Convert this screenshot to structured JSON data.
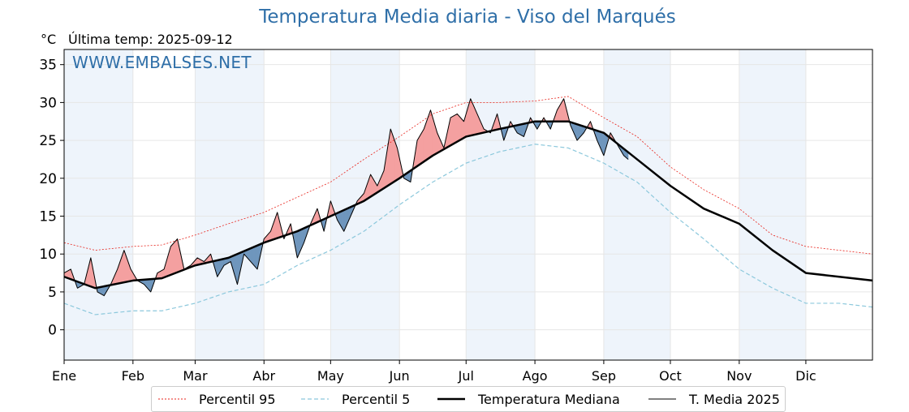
{
  "chart_data": {
    "type": "line",
    "title": "Temperatura Media diaria - Viso del Marqués",
    "unit_label": "°C",
    "last_temp_label": "Última temp: 2025-09-12",
    "watermark": "WWW.EMBALSES.NET",
    "ylim": [
      -4,
      37
    ],
    "yticks": [
      0,
      5,
      10,
      15,
      20,
      25,
      30,
      35
    ],
    "x_range_days": [
      1,
      365
    ],
    "month_labels": [
      "Ene",
      "Feb",
      "Mar",
      "Abr",
      "May",
      "Jun",
      "Jul",
      "Ago",
      "Sep",
      "Oct",
      "Nov",
      "Dic"
    ],
    "month_start_days": [
      1,
      32,
      60,
      91,
      121,
      152,
      182,
      213,
      244,
      274,
      305,
      335
    ],
    "grid": true,
    "legend_position": "bottom",
    "colors": {
      "p95": "#e8231b",
      "p5": "#8cc8dc",
      "median": "#000000",
      "current": "#000000",
      "above_fill": "#f4a0a0",
      "below_fill": "#6f96bd",
      "title": "#2f6fa8",
      "band": "#eef4fb"
    },
    "legend": [
      {
        "key": "p95",
        "label": "Percentil 95"
      },
      {
        "key": "p5",
        "label": "Percentil 5"
      },
      {
        "key": "median",
        "label": "Temperatura Mediana"
      },
      {
        "key": "current",
        "label": "T. Media 2025"
      }
    ],
    "series": [
      {
        "name": "Percentil 95",
        "key": "p95",
        "x": [
          1,
          15,
          32,
          45,
          60,
          75,
          91,
          106,
          121,
          136,
          152,
          167,
          182,
          197,
          213,
          228,
          244,
          259,
          274,
          289,
          305,
          320,
          335,
          350,
          365
        ],
        "values": [
          11.5,
          10.5,
          11,
          11.2,
          12.5,
          14,
          15.5,
          17.5,
          19.5,
          22.5,
          25.5,
          28.5,
          30,
          30,
          30.2,
          30.8,
          28,
          25.5,
          21.5,
          18.5,
          16,
          12.5,
          11,
          10.5,
          10
        ]
      },
      {
        "name": "Percentil 5",
        "key": "p5",
        "x": [
          1,
          15,
          32,
          45,
          60,
          75,
          91,
          106,
          121,
          136,
          152,
          167,
          182,
          197,
          213,
          228,
          244,
          259,
          274,
          289,
          305,
          320,
          335,
          350,
          365
        ],
        "values": [
          3.5,
          2,
          2.5,
          2.5,
          3.5,
          5,
          6,
          8.5,
          10.5,
          13,
          16.5,
          19.5,
          22,
          23.5,
          24.5,
          24,
          22,
          19.5,
          15.5,
          12,
          8,
          5.5,
          3.5,
          3.5,
          3
        ]
      },
      {
        "name": "Temperatura Mediana",
        "key": "median",
        "x": [
          1,
          15,
          32,
          45,
          60,
          75,
          91,
          106,
          121,
          136,
          152,
          167,
          182,
          197,
          213,
          228,
          244,
          259,
          274,
          289,
          305,
          320,
          335,
          350,
          365
        ],
        "values": [
          7,
          5.5,
          6.5,
          6.8,
          8.5,
          9.5,
          11.5,
          13,
          15,
          17,
          20,
          23,
          25.5,
          26.5,
          27.5,
          27.5,
          26,
          22.5,
          19,
          16,
          14,
          10.5,
          7.5,
          7,
          6.5
        ]
      },
      {
        "name": "T. Media 2025",
        "key": "current",
        "x": [
          1,
          4,
          7,
          10,
          13,
          16,
          19,
          22,
          25,
          28,
          31,
          34,
          37,
          40,
          43,
          46,
          49,
          52,
          55,
          58,
          61,
          64,
          67,
          70,
          73,
          76,
          79,
          82,
          85,
          88,
          91,
          94,
          97,
          100,
          103,
          106,
          109,
          112,
          115,
          118,
          121,
          124,
          127,
          130,
          133,
          136,
          139,
          142,
          145,
          148,
          151,
          154,
          157,
          160,
          163,
          166,
          169,
          172,
          175,
          178,
          181,
          184,
          187,
          190,
          193,
          196,
          199,
          202,
          205,
          208,
          211,
          214,
          217,
          220,
          223,
          226,
          229,
          232,
          235,
          238,
          241,
          244,
          247,
          250,
          253,
          255
        ],
        "values": [
          7.5,
          8,
          5.5,
          6,
          9.5,
          5,
          4.5,
          6,
          8,
          10.5,
          8,
          6.5,
          6,
          5,
          7.5,
          8,
          11,
          12,
          8,
          8.5,
          9.5,
          9,
          10,
          7,
          8.5,
          9,
          6,
          10,
          9,
          8,
          12,
          13,
          15.5,
          12,
          14,
          9.5,
          11.5,
          14,
          16,
          13,
          17,
          14.5,
          13,
          15,
          17,
          18,
          20.5,
          19,
          21,
          26.5,
          24,
          20,
          19.5,
          25,
          26.5,
          29,
          26,
          24,
          28,
          28.5,
          27.5,
          30.5,
          28.5,
          26.5,
          26,
          28.5,
          25,
          27.5,
          26,
          25.5,
          28,
          26.5,
          28,
          26.5,
          29,
          30.5,
          27,
          25,
          26,
          27.5,
          25,
          23,
          26,
          24.5,
          23,
          22.5
        ]
      }
    ]
  }
}
